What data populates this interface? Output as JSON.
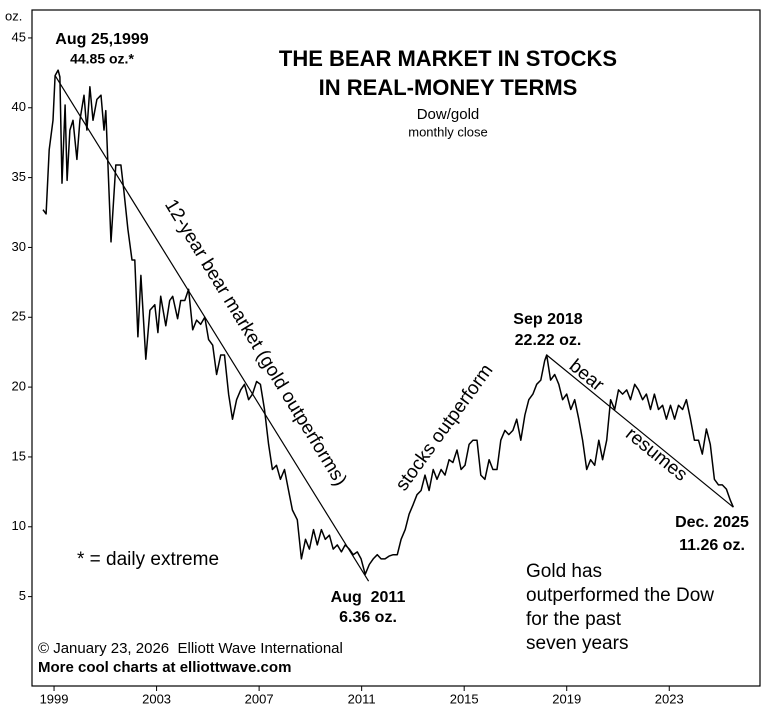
{
  "chart_data": {
    "type": "line",
    "title": [
      "THE BEAR MARKET IN STOCKS",
      "IN REAL-MONEY TERMS"
    ],
    "subtitle": "Dow/gold",
    "note": "monthly close",
    "y_label": "oz.",
    "color": "#000000",
    "xlim": [
      1998.14,
      2026.54
    ],
    "ylim": [
      -1.4,
      47.0
    ],
    "xticks": [
      1999,
      2003,
      2007,
      2011,
      2015,
      2019,
      2023
    ],
    "yticks": [
      5,
      10,
      15,
      20,
      25,
      30,
      35,
      40,
      45
    ],
    "grid": false,
    "x": [
      1998.57,
      1998.69,
      1998.81,
      1998.96,
      1999.04,
      1999.16,
      1999.23,
      1999.31,
      1999.43,
      1999.51,
      1999.62,
      1999.74,
      1999.89,
      2000.01,
      2000.17,
      2000.28,
      2000.4,
      2000.52,
      2000.67,
      2000.83,
      2000.95,
      2001.02,
      2001.22,
      2001.41,
      2001.61,
      2001.72,
      2001.88,
      2002.04,
      2002.15,
      2002.27,
      2002.39,
      2002.58,
      2002.74,
      2002.93,
      2003.05,
      2003.16,
      2003.36,
      2003.51,
      2003.63,
      2003.82,
      2003.94,
      2004.1,
      2004.25,
      2004.41,
      2004.56,
      2004.72,
      2004.88,
      2005.03,
      2005.19,
      2005.34,
      2005.5,
      2005.65,
      2005.81,
      2005.96,
      2006.12,
      2006.28,
      2006.43,
      2006.59,
      2006.74,
      2006.9,
      2007.05,
      2007.21,
      2007.37,
      2007.52,
      2007.68,
      2007.83,
      2007.99,
      2008.14,
      2008.3,
      2008.49,
      2008.65,
      2008.81,
      2008.96,
      2009.12,
      2009.27,
      2009.43,
      2009.58,
      2009.74,
      2009.89,
      2010.05,
      2010.21,
      2010.36,
      2010.52,
      2010.67,
      2010.83,
      2010.98,
      2011.14,
      2011.3,
      2011.45,
      2011.61,
      2011.76,
      2011.91,
      2012.07,
      2012.23,
      2012.39,
      2012.54,
      2012.7,
      2012.85,
      2013.01,
      2013.16,
      2013.32,
      2013.47,
      2013.63,
      2013.79,
      2013.94,
      2014.1,
      2014.25,
      2014.41,
      2014.56,
      2014.72,
      2014.88,
      2015.03,
      2015.19,
      2015.34,
      2015.5,
      2015.65,
      2015.81,
      2015.97,
      2016.12,
      2016.28,
      2016.43,
      2016.59,
      2016.74,
      2016.9,
      2017.05,
      2017.21,
      2017.37,
      2017.52,
      2017.68,
      2017.83,
      2017.99,
      2018.14,
      2018.22,
      2018.37,
      2018.53,
      2018.69,
      2018.84,
      2019.0,
      2019.16,
      2019.31,
      2019.47,
      2019.62,
      2019.78,
      2019.93,
      2020.09,
      2020.25,
      2020.4,
      2020.56,
      2020.71,
      2020.87,
      2021.02,
      2021.18,
      2021.34,
      2021.49,
      2021.65,
      2021.8,
      2021.96,
      2022.11,
      2022.27,
      2022.42,
      2022.58,
      2022.74,
      2022.89,
      2023.05,
      2023.21,
      2023.36,
      2023.52,
      2023.67,
      2023.83,
      2023.98,
      2024.14,
      2024.29,
      2024.45,
      2024.6,
      2024.76,
      2024.92,
      2025.07,
      2025.23,
      2025.38,
      2025.5
    ],
    "values": [
      32.7,
      32.4,
      37.0,
      39.1,
      42.3,
      42.7,
      42.2,
      34.6,
      40.2,
      34.8,
      38.4,
      39.1,
      36.3,
      39.1,
      40.9,
      38.4,
      41.5,
      39.1,
      40.6,
      40.9,
      38.4,
      39.8,
      30.4,
      35.9,
      35.9,
      34.1,
      31.3,
      29.1,
      29.1,
      23.6,
      28.0,
      22.0,
      25.5,
      25.9,
      23.9,
      26.5,
      24.4,
      26.2,
      26.5,
      24.9,
      26.2,
      26.2,
      27.0,
      24.1,
      24.8,
      24.5,
      25.0,
      23.4,
      23.0,
      20.9,
      22.3,
      22.3,
      19.5,
      17.7,
      19.1,
      19.8,
      20.2,
      19.1,
      19.5,
      20.4,
      20.2,
      18.4,
      15.9,
      14.1,
      14.4,
      13.4,
      14.1,
      12.7,
      11.2,
      10.5,
      7.7,
      9.1,
      8.4,
      9.8,
      8.7,
      9.8,
      9.1,
      9.4,
      8.4,
      8.7,
      8.2,
      8.7,
      8.4,
      8.0,
      8.2,
      7.7,
      6.6,
      7.3,
      7.7,
      8.0,
      7.7,
      7.7,
      7.9,
      8.0,
      8.0,
      9.1,
      9.8,
      10.9,
      11.6,
      12.3,
      12.6,
      13.7,
      12.6,
      14.1,
      13.4,
      14.1,
      13.7,
      14.8,
      14.6,
      15.5,
      14.1,
      14.4,
      15.9,
      16.2,
      16.2,
      13.7,
      13.4,
      14.8,
      14.1,
      14.1,
      16.2,
      16.9,
      16.6,
      16.9,
      17.7,
      16.2,
      18.0,
      19.1,
      19.5,
      20.2,
      20.5,
      21.9,
      22.3,
      20.5,
      20.9,
      20.2,
      19.1,
      19.5,
      18.4,
      19.1,
      17.7,
      16.2,
      14.1,
      14.8,
      14.4,
      16.2,
      14.8,
      16.2,
      19.1,
      18.4,
      19.8,
      19.5,
      19.8,
      19.1,
      20.2,
      19.8,
      19.1,
      19.5,
      18.4,
      19.5,
      18.4,
      18.7,
      17.7,
      18.7,
      17.7,
      18.7,
      18.4,
      19.1,
      17.7,
      16.2,
      16.2,
      15.2,
      17.0,
      15.9,
      13.4,
      13.0,
      13.0,
      12.7,
      11.9,
      11.4
    ],
    "trendlines": [
      {
        "x": [
          1999.04,
          2011.27
        ],
        "values": [
          42.3,
          6.1
        ]
      },
      {
        "x": [
          2018.22,
          2025.5
        ],
        "values": [
          22.3,
          11.4
        ]
      }
    ],
    "annotations": [
      "Aug 25,1999",
      "44.85 oz.*",
      "12-year bear market (gold outperforms)",
      "stocks outperform",
      "Sep 2018",
      "22.22 oz.",
      "bear",
      "resumes",
      "Aug  2011",
      "6.36 oz.",
      "Dec. 2025",
      "11.26 oz.",
      "* = daily extreme",
      "Gold has",
      "outperformed the Dow",
      "for the past",
      "seven years",
      "© January 23, 2026  Elliott Wave International",
      "More cool charts at elliottwave.com"
    ]
  }
}
